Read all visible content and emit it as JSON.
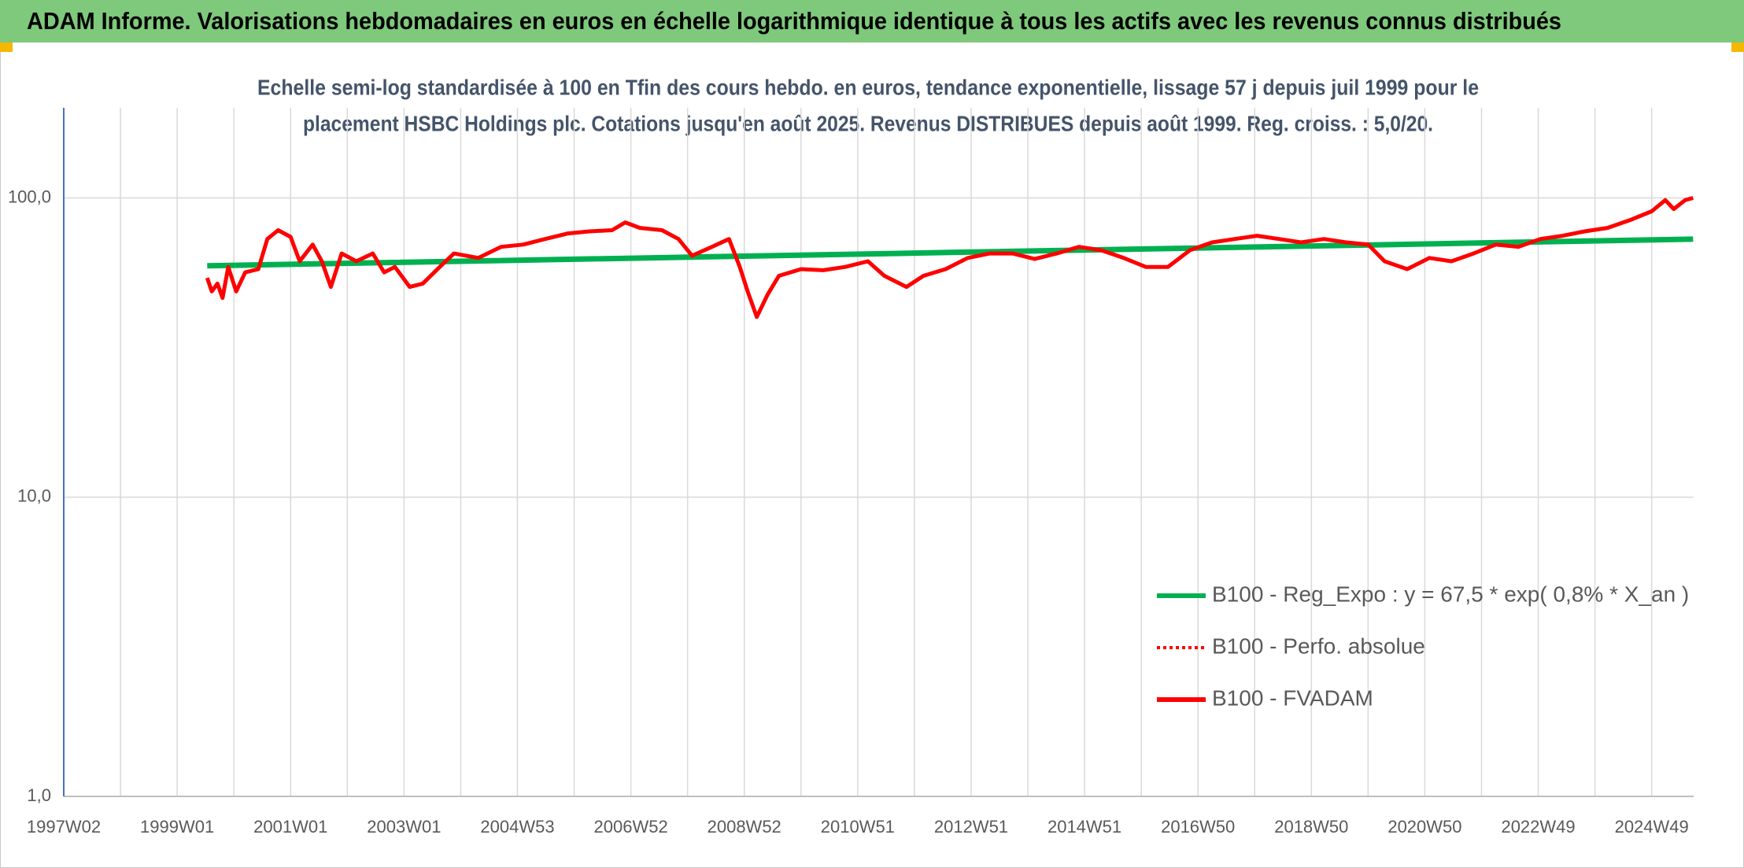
{
  "chart_data": {
    "type": "line",
    "header": "ADAM Informe. Valorisations hebdomadaires en euros en échelle logarithmique identique à tous les actifs avec les revenus connus distribués",
    "subtitle": [
      "Echelle semi-log standardisée à 100 en Tfin des cours hebdo. en euros, tendance exponentielle, lissage 57 j depuis juil 1999 pour le",
      "placement HSBC Holdings plc. Cotations jusqu'en août 2025. Revenus DISTRIBUES depuis août 1999. Reg. croiss. : 5,0/20."
    ],
    "xlim": [
      1997.0,
      2025.74
    ],
    "xticks": [
      {
        "value": 1997.0,
        "label": "1997W02"
      },
      {
        "value": 1999.0,
        "label": "1999W01"
      },
      {
        "value": 2001.0,
        "label": "2001W01"
      },
      {
        "value": 2003.0,
        "label": "2003W01"
      },
      {
        "value": 2005.0,
        "label": "2004W53"
      },
      {
        "value": 2007.0,
        "label": "2006W52"
      },
      {
        "value": 2009.0,
        "label": "2008W52"
      },
      {
        "value": 2011.0,
        "label": "2010W51"
      },
      {
        "value": 2013.0,
        "label": "2012W51"
      },
      {
        "value": 2015.0,
        "label": "2014W51"
      },
      {
        "value": 2017.0,
        "label": "2016W50"
      },
      {
        "value": 2019.0,
        "label": "2018W50"
      },
      {
        "value": 2021.0,
        "label": "2020W50"
      },
      {
        "value": 2023.0,
        "label": "2022W49"
      },
      {
        "value": 2025.0,
        "label": "2024W49"
      }
    ],
    "xminorticks": [
      1998,
      2000,
      2002,
      2004,
      2006,
      2008,
      2010,
      2012,
      2014,
      2016,
      2018,
      2020,
      2022,
      2024
    ],
    "ylim": [
      1,
      200
    ],
    "yscale": "log",
    "yticks": [
      {
        "value": 1,
        "label": "1,0"
      },
      {
        "value": 10,
        "label": "10,0"
      },
      {
        "value": 100,
        "label": "100,0"
      }
    ],
    "grid": true,
    "legend": "lower right",
    "series": [
      {
        "name": "B100 - Reg_Expo : y = 67,5 * exp( 0,8% *  X_an )",
        "color": "#00b050",
        "line_style": "solid",
        "x": [
          1999.53,
          2012.63,
          2025.73
        ],
        "values": [
          59.3,
          65.7,
          72.8
        ]
      },
      {
        "name": "B100 - Perfo. absolue",
        "color": "#ff0000",
        "line_style": "dotted",
        "x": [
          1999.53,
          1999.61,
          1999.71,
          1999.8,
          1999.9,
          2000.04,
          2000.2,
          2000.43,
          2000.59,
          2000.78,
          2001.0,
          2001.16,
          2001.39,
          2001.55,
          2001.71,
          2001.9,
          2002.16,
          2002.45,
          2002.65,
          2002.84,
          2003.1,
          2003.33,
          2003.63,
          2003.88,
          2004.31,
          2004.71,
          2005.1,
          2005.49,
          2005.88,
          2006.27,
          2006.67,
          2006.9,
          2007.16,
          2007.55,
          2007.84,
          2008.08,
          2008.43,
          2008.73,
          2008.92,
          2009.06,
          2009.22,
          2009.41,
          2009.61,
          2010.0,
          2010.39,
          2010.78,
          2011.18,
          2011.47,
          2011.86,
          2012.16,
          2012.55,
          2012.94,
          2013.33,
          2013.73,
          2014.12,
          2014.51,
          2014.9,
          2015.29,
          2015.69,
          2016.08,
          2016.47,
          2016.86,
          2017.25,
          2017.65,
          2018.04,
          2018.43,
          2018.82,
          2019.22,
          2019.61,
          2020.0,
          2020.29,
          2020.69,
          2021.08,
          2021.47,
          2021.86,
          2022.25,
          2022.65,
          2023.04,
          2023.43,
          2023.82,
          2024.22,
          2024.61,
          2025.0,
          2025.24,
          2025.39,
          2025.59,
          2025.73
        ],
        "values": [
          54.0,
          48.7,
          51.7,
          46.3,
          58.8,
          48.7,
          56.4,
          57.8,
          72.9,
          78.0,
          74.1,
          61.4,
          69.8,
          61.4,
          50.4,
          65.2,
          61.4,
          65.2,
          56.4,
          58.8,
          50.4,
          51.7,
          58.8,
          65.2,
          63.0,
          68.6,
          69.8,
          72.9,
          76.0,
          77.3,
          78.0,
          82.8,
          79.4,
          78.0,
          72.9,
          64.1,
          68.6,
          72.9,
          58.8,
          48.7,
          40.0,
          47.5,
          54.9,
          57.8,
          57.3,
          58.8,
          61.4,
          54.9,
          50.4,
          54.9,
          57.8,
          63.0,
          65.2,
          65.2,
          62.5,
          65.2,
          68.6,
          66.9,
          63.0,
          58.8,
          58.8,
          66.9,
          71.0,
          72.9,
          74.7,
          72.9,
          71.0,
          72.9,
          71.0,
          69.8,
          61.4,
          57.8,
          63.0,
          61.4,
          65.2,
          69.8,
          68.6,
          72.9,
          74.7,
          77.3,
          79.4,
          84.2,
          90.2,
          98.3,
          91.8,
          98.3,
          100.0
        ]
      },
      {
        "name": "B100 - FVADAM",
        "color": "#ff0000",
        "line_style": "solid",
        "x": [
          1999.53,
          1999.61,
          1999.71,
          1999.8,
          1999.9,
          2000.04,
          2000.2,
          2000.43,
          2000.59,
          2000.78,
          2001.0,
          2001.16,
          2001.39,
          2001.55,
          2001.71,
          2001.9,
          2002.16,
          2002.45,
          2002.65,
          2002.84,
          2003.1,
          2003.33,
          2003.63,
          2003.88,
          2004.31,
          2004.71,
          2005.1,
          2005.49,
          2005.88,
          2006.27,
          2006.67,
          2006.9,
          2007.16,
          2007.55,
          2007.84,
          2008.08,
          2008.43,
          2008.73,
          2008.92,
          2009.06,
          2009.22,
          2009.41,
          2009.61,
          2010.0,
          2010.39,
          2010.78,
          2011.18,
          2011.47,
          2011.86,
          2012.16,
          2012.55,
          2012.94,
          2013.33,
          2013.73,
          2014.12,
          2014.51,
          2014.9,
          2015.29,
          2015.69,
          2016.08,
          2016.47,
          2016.86,
          2017.25,
          2017.65,
          2018.04,
          2018.43,
          2018.82,
          2019.22,
          2019.61,
          2020.0,
          2020.29,
          2020.69,
          2021.08,
          2021.47,
          2021.86,
          2022.25,
          2022.65,
          2023.04,
          2023.43,
          2023.82,
          2024.22,
          2024.61,
          2025.0,
          2025.24,
          2025.39,
          2025.59,
          2025.73
        ],
        "values": [
          54.0,
          48.7,
          51.7,
          46.3,
          58.8,
          48.7,
          56.4,
          57.8,
          72.9,
          78.0,
          74.1,
          61.4,
          69.8,
          61.4,
          50.4,
          65.2,
          61.4,
          65.2,
          56.4,
          58.8,
          50.4,
          51.7,
          58.8,
          65.2,
          63.0,
          68.6,
          69.8,
          72.9,
          76.0,
          77.3,
          78.0,
          82.8,
          79.4,
          78.0,
          72.9,
          64.1,
          68.6,
          72.9,
          58.8,
          48.7,
          40.0,
          47.5,
          54.9,
          57.8,
          57.3,
          58.8,
          61.4,
          54.9,
          50.4,
          54.9,
          57.8,
          63.0,
          65.2,
          65.2,
          62.5,
          65.2,
          68.6,
          66.9,
          63.0,
          58.8,
          58.8,
          66.9,
          71.0,
          72.9,
          74.7,
          72.9,
          71.0,
          72.9,
          71.0,
          69.8,
          61.4,
          57.8,
          63.0,
          61.4,
          65.2,
          69.8,
          68.6,
          72.9,
          74.7,
          77.3,
          79.4,
          84.2,
          90.2,
          98.3,
          91.8,
          98.3,
          100.0
        ]
      }
    ]
  }
}
